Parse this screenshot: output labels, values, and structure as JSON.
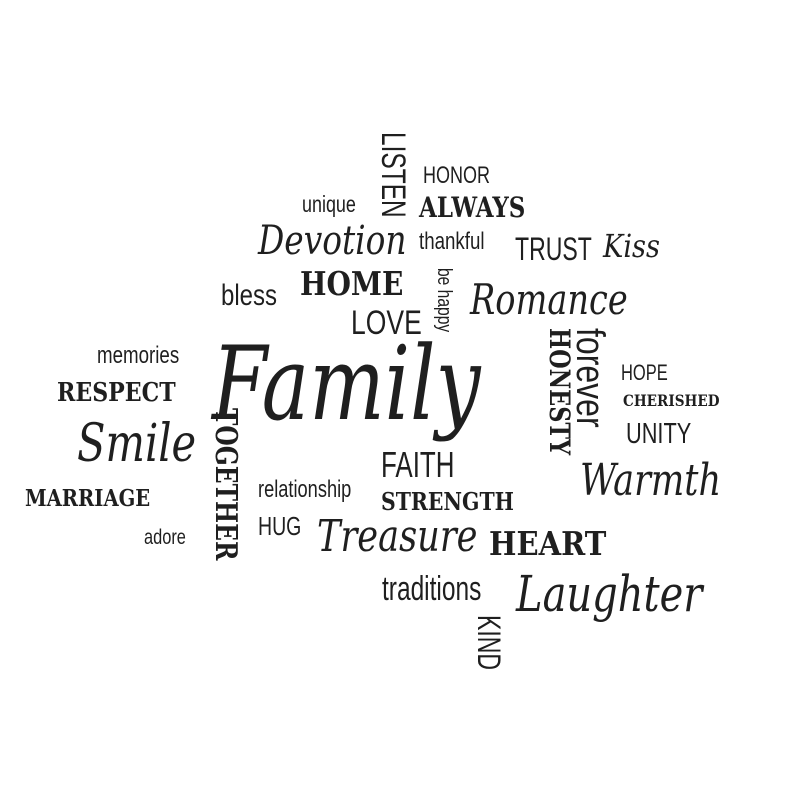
{
  "words": {
    "listen": "LISTEN",
    "honor": "HONOR",
    "unique": "unique",
    "always": "ALWAYS",
    "devotion": "Devotion",
    "thankful": "thankful",
    "trust": "TRUST",
    "kiss": "Kiss",
    "bless": "bless",
    "home": "HOME",
    "be_happy": "be happy",
    "romance": "Romance",
    "love": "LOVE",
    "honesty": "HONESTY",
    "forever": "forever",
    "memories": "memories",
    "family": "Family",
    "hope": "HOPE",
    "respect": "RESPECT",
    "cherished": "CHERISHED",
    "unity": "UNITY",
    "smile": "Smile",
    "together": "TOGETHER",
    "faith": "FAITH",
    "warmth": "Warmth",
    "relationship": "relationship",
    "marriage": "MARRIAGE",
    "strength": "STRENGTH",
    "hug": "HUG",
    "adore": "adore",
    "treasure": "Treasure",
    "heart": "HEART",
    "traditions": "traditions",
    "laughter": "Laughter",
    "kind": "KIND"
  },
  "colors": {
    "ink": "#1f1f1f",
    "background": "#ffffff"
  }
}
